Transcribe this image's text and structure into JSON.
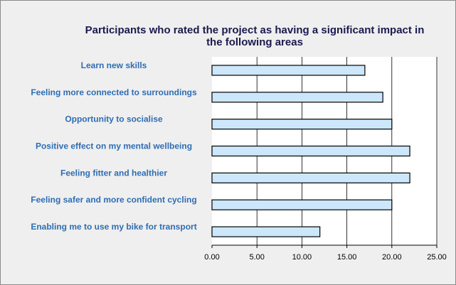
{
  "chart_data": {
    "type": "bar",
    "orientation": "horizontal",
    "title_lines": [
      "Participants who rated the project as having a significant impact in",
      "the following areas"
    ],
    "categories": [
      "Learn new skills",
      "Feeling more connected to surroundings",
      "Opportunity to socialise",
      "Positive effect on my mental wellbeing",
      "Feeling fitter and healthier",
      "Feeling safer and more confident cycling",
      "Enabling me to use my bike for transport"
    ],
    "values": [
      17,
      19,
      20,
      22,
      22,
      20,
      12
    ],
    "xlim": [
      0,
      25
    ],
    "xticks": [
      "0.00",
      "5.00",
      "10.00",
      "15.00",
      "20.00",
      "25.00"
    ],
    "grid": true,
    "legend": "none",
    "colors": {
      "bar_fill": "#cce6fb",
      "bar_stroke": "#000000",
      "category_text": "#2e6db4",
      "title_text": "#1a1a4e",
      "background": "#efefef",
      "plot_background": "#ffffff"
    }
  }
}
